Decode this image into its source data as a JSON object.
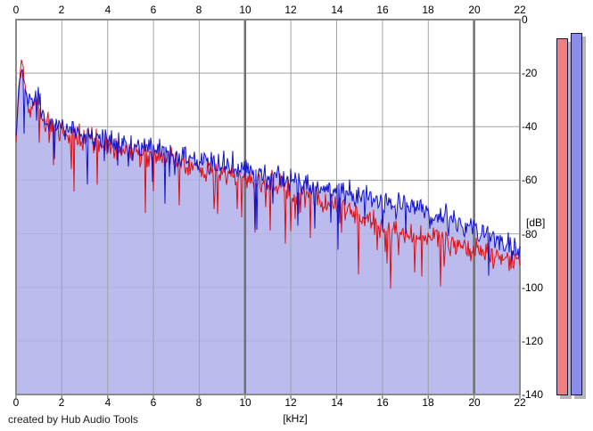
{
  "app": {
    "credit": "created by Hub Audio Tools"
  },
  "chart_data": {
    "type": "line",
    "title": "",
    "xlabel": "[kHz]",
    "ylabel": "[dB]",
    "x_range": [
      0,
      22
    ],
    "y_range_db": [
      0,
      -140
    ],
    "x_ticks": [
      0,
      2,
      4,
      6,
      8,
      10,
      12,
      14,
      16,
      18,
      20,
      22
    ],
    "y_ticks": [
      0,
      -20,
      -40,
      -60,
      -80,
      -100,
      -120,
      -140
    ],
    "major_x_gridlines": [
      10,
      20
    ],
    "grid": true,
    "legend_position": "none",
    "series": [
      {
        "name": "spectrum-left",
        "color": "#dc1014",
        "seed": 91,
        "jitter_db": 4.6,
        "spike_prob": 0.07,
        "spike_db": [
          5,
          18
        ],
        "envelope_khz_db": [
          [
            0,
            -46
          ],
          [
            0.1,
            -30
          ],
          [
            0.22,
            -14
          ],
          [
            0.32,
            -20
          ],
          [
            0.5,
            -33
          ],
          [
            0.7,
            -34
          ],
          [
            0.9,
            -28
          ],
          [
            1.1,
            -37
          ],
          [
            1.5,
            -39
          ],
          [
            2,
            -42
          ],
          [
            2.5,
            -43
          ],
          [
            3,
            -45
          ],
          [
            4,
            -47
          ],
          [
            5,
            -49
          ],
          [
            6,
            -51
          ],
          [
            7,
            -53
          ],
          [
            8,
            -56
          ],
          [
            9,
            -58
          ],
          [
            10,
            -59
          ],
          [
            11,
            -61
          ],
          [
            12,
            -63
          ],
          [
            13,
            -66
          ],
          [
            14,
            -70
          ],
          [
            15,
            -74
          ],
          [
            16,
            -77
          ],
          [
            17,
            -80
          ],
          [
            18,
            -82
          ],
          [
            19,
            -84
          ],
          [
            20,
            -86
          ],
          [
            21,
            -88
          ],
          [
            22,
            -90
          ]
        ]
      },
      {
        "name": "spectrum-right",
        "color": "#1212cc",
        "fill": true,
        "fill_color": "#b2b2ec",
        "fill_opacity": 0.88,
        "seed": 4242,
        "jitter_db": 4.6,
        "spike_prob": 0.05,
        "spike_db": [
          4,
          16
        ],
        "envelope_khz_db": [
          [
            0,
            -44
          ],
          [
            0.1,
            -28
          ],
          [
            0.22,
            -17
          ],
          [
            0.32,
            -22
          ],
          [
            0.5,
            -31
          ],
          [
            0.7,
            -32
          ],
          [
            0.9,
            -26
          ],
          [
            1.1,
            -35
          ],
          [
            1.5,
            -37
          ],
          [
            2,
            -40
          ],
          [
            2.5,
            -41
          ],
          [
            3,
            -43
          ],
          [
            4,
            -45
          ],
          [
            5,
            -47
          ],
          [
            6,
            -48
          ],
          [
            7,
            -50
          ],
          [
            8,
            -53
          ],
          [
            9,
            -55
          ],
          [
            10,
            -56
          ],
          [
            11,
            -58
          ],
          [
            12,
            -60
          ],
          [
            13,
            -62
          ],
          [
            14,
            -64
          ],
          [
            15,
            -65
          ],
          [
            16,
            -67
          ],
          [
            17,
            -70
          ],
          [
            18,
            -72
          ],
          [
            19,
            -75
          ],
          [
            20,
            -78
          ],
          [
            21,
            -82
          ],
          [
            22,
            -86
          ]
        ]
      }
    ]
  },
  "meters": {
    "scale_db": [
      0,
      -140
    ],
    "bars": [
      {
        "name": "meter-left",
        "color": "#f08080",
        "peak_db": -7
      },
      {
        "name": "meter-right",
        "color": "#8c8cee",
        "peak_db": -5
      }
    ],
    "shadow_color": "#b6b6b6",
    "border_color": "#141440"
  },
  "colors": {
    "grid": "#a2a2a2",
    "grid_major": "#6f6f6f",
    "frame": "#8a8a8a",
    "plot_bg": "#ffffff",
    "page_bg": "#ffffff"
  }
}
